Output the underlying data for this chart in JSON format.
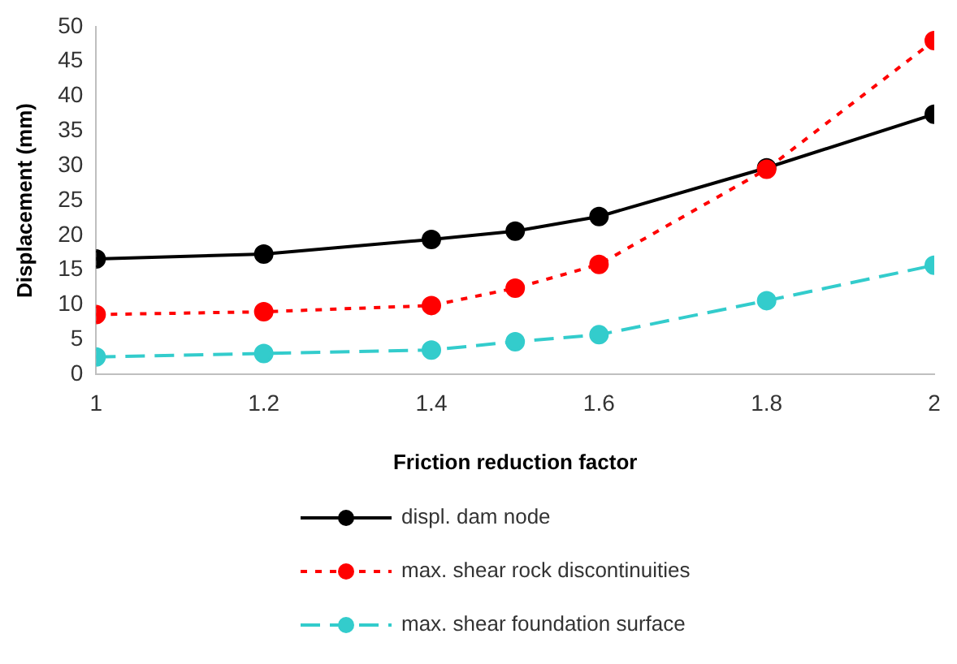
{
  "chart_data": {
    "type": "line",
    "xlabel": "Friction reduction factor",
    "ylabel": "Displacement (mm)",
    "x": [
      1,
      1.2,
      1.4,
      1.5,
      1.6,
      1.8,
      2
    ],
    "xlim": [
      1,
      2
    ],
    "xticks": [
      1,
      1.2,
      1.4,
      1.6,
      1.8,
      2
    ],
    "ylim": [
      0,
      50
    ],
    "yticks": [
      0,
      5,
      10,
      15,
      20,
      25,
      30,
      35,
      40,
      45,
      50
    ],
    "grid": false,
    "legend": "bottom",
    "marker": "circle",
    "series": [
      {
        "name": "displ. dam node",
        "color": "#000000",
        "line_style": "solid",
        "values": [
          16.6,
          17.3,
          19.4,
          20.6,
          22.7,
          29.7,
          37.4
        ]
      },
      {
        "name": "max. shear rock discontinuities",
        "color": "#ff0000",
        "line_style": "dotted",
        "values": [
          8.6,
          9.0,
          9.9,
          12.4,
          15.8,
          29.5,
          48.0
        ]
      },
      {
        "name": "max. shear foundation surface",
        "color": "#33cccc",
        "line_style": "dashed",
        "values": [
          2.5,
          3.0,
          3.5,
          4.7,
          5.7,
          10.6,
          15.7
        ]
      }
    ]
  }
}
